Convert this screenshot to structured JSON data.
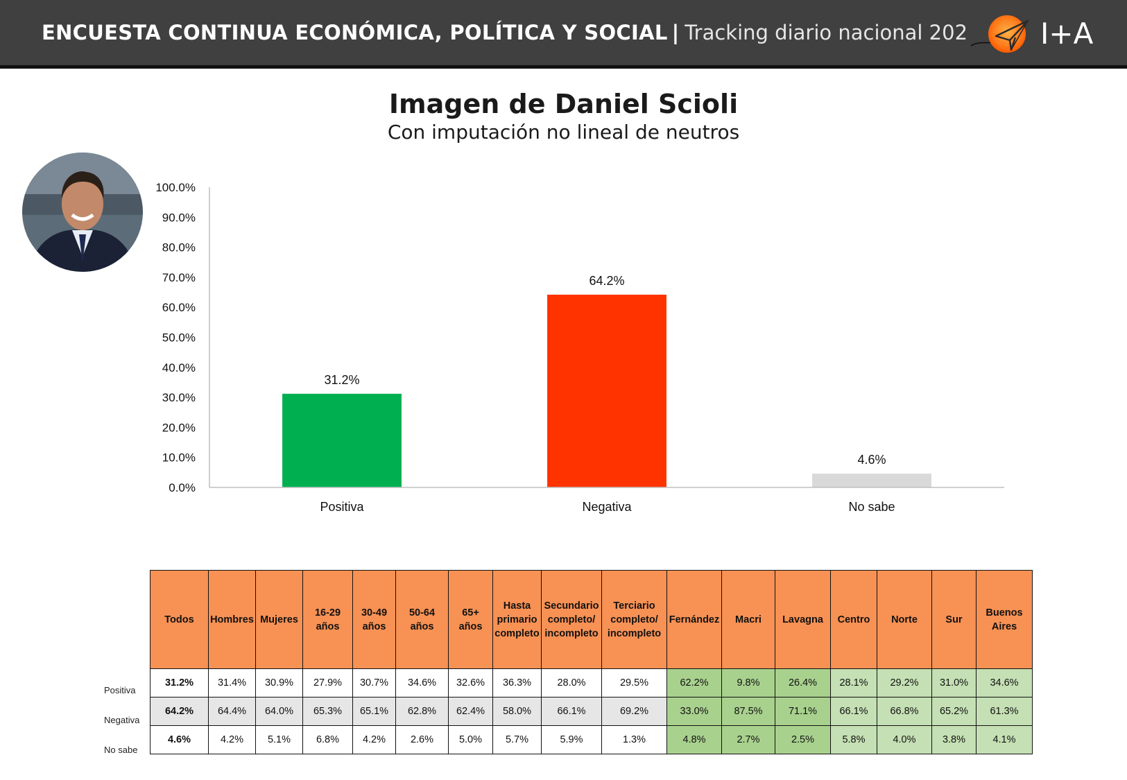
{
  "header": {
    "title_bold": "ENCUESTA CONTINUA ECONÓMICA, POLÍTICA Y SOCIAL",
    "separator": "|",
    "title_light": "Tracking diario nacional 202",
    "logo_text": "I+A"
  },
  "colors": {
    "header_bg": "#404040",
    "positive": "#00b050",
    "negative": "#ff3300",
    "no_sabe": "#d9d9d9",
    "table_header": "#f79154"
  },
  "chart_data": {
    "type": "bar",
    "title": "Imagen de Daniel Scioli",
    "subtitle": "Con imputación no lineal de neutros",
    "categories": [
      "Positiva",
      "Negativa",
      "No sabe"
    ],
    "values": [
      31.2,
      64.2,
      4.6
    ],
    "value_labels": [
      "31.2%",
      "64.2%",
      "4.6%"
    ],
    "bar_colors": [
      "#00b050",
      "#ff3300",
      "#d9d9d9"
    ],
    "ylim": [
      0,
      100
    ],
    "yticks": [
      "0.0%",
      "10.0%",
      "20.0%",
      "30.0%",
      "40.0%",
      "50.0%",
      "60.0%",
      "70.0%",
      "80.0%",
      "90.0%",
      "100.0%"
    ],
    "xlabel": "",
    "ylabel": "",
    "grid": false,
    "legend": "none"
  },
  "table": {
    "headers": [
      "Todos",
      "Hombres",
      "Mujeres",
      "16-29\naños",
      "30-49\naños",
      "50-64\naños",
      "65+\naños",
      "Hasta\nprimario\ncompleto",
      "Secundario\ncompleto/\nincompleto",
      "Terciario\ncompleto/\nincompleto",
      "Fernández",
      "Macri",
      "Lavagna",
      "Centro",
      "Norte",
      "Sur",
      "Buenos\nAires"
    ],
    "row_labels": [
      "Positiva",
      "Negativa",
      "No sabe"
    ],
    "rows": [
      [
        "31.2%",
        "31.4%",
        "30.9%",
        "27.9%",
        "30.7%",
        "34.6%",
        "32.6%",
        "36.3%",
        "28.0%",
        "29.5%",
        "62.2%",
        "9.8%",
        "26.4%",
        "28.1%",
        "29.2%",
        "31.0%",
        "34.6%"
      ],
      [
        "64.2%",
        "64.4%",
        "64.0%",
        "65.3%",
        "65.1%",
        "62.8%",
        "62.4%",
        "58.0%",
        "66.1%",
        "69.2%",
        "33.0%",
        "87.5%",
        "71.1%",
        "66.1%",
        "66.8%",
        "65.2%",
        "61.3%"
      ],
      [
        "4.6%",
        "4.2%",
        "5.1%",
        "6.8%",
        "4.2%",
        "2.6%",
        "5.0%",
        "5.7%",
        "5.9%",
        "1.3%",
        "4.8%",
        "2.7%",
        "2.5%",
        "5.8%",
        "4.0%",
        "3.8%",
        "4.1%"
      ]
    ]
  }
}
